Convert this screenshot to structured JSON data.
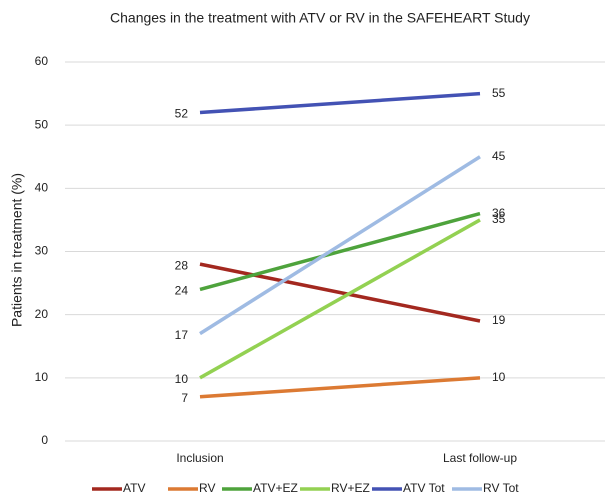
{
  "chart_data": {
    "type": "line",
    "title": "Changes in the treatment with ATV or RV in the SAFEHEART Study",
    "y_label": "Patients in treatment (%)",
    "categories": [
      "Inclusion",
      "Last follow-up"
    ],
    "series": [
      {
        "name": "ATV",
        "color": "#a3281f",
        "values": [
          28,
          19
        ]
      },
      {
        "name": "RV",
        "color": "#dc7a33",
        "values": [
          7,
          10
        ]
      },
      {
        "name": "ATV+EZ",
        "color": "#4ea33c",
        "values": [
          24,
          36
        ]
      },
      {
        "name": "RV+EZ",
        "color": "#93d152",
        "values": [
          10,
          35
        ]
      },
      {
        "name": "ATV Tot",
        "color": "#4352b4",
        "values": [
          52,
          55
        ]
      },
      {
        "name": "RV Tot",
        "color": "#9fbbe3",
        "values": [
          17,
          45
        ]
      }
    ],
    "ylim": [
      0,
      60
    ],
    "yticks": [
      0,
      10,
      20,
      30,
      40,
      50,
      60
    ],
    "grid": true,
    "legend": "bottom"
  }
}
